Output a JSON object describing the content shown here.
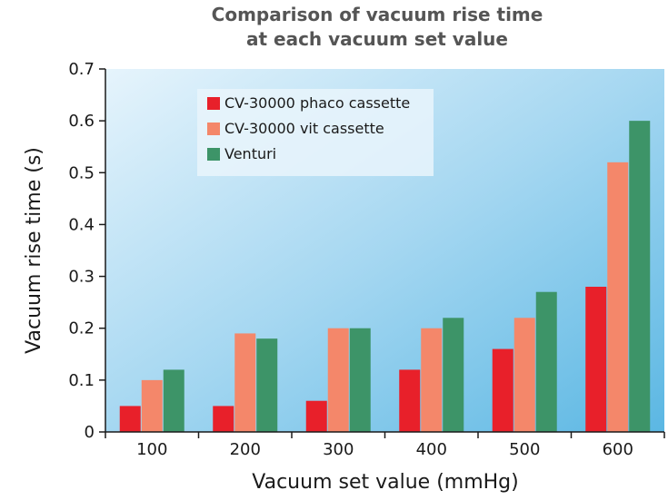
{
  "chart_data": {
    "type": "bar",
    "title": [
      "Comparison of vacuum rise time",
      "at each vacuum set value"
    ],
    "xlabel": "Vacuum set value (mmHg)",
    "ylabel": "Vacuum rise time (s)",
    "ylim": [
      0,
      0.7
    ],
    "yticks": [
      "0",
      "0.1",
      "0.2",
      "0.3",
      "0.4",
      "0.5",
      "0.6",
      "0.7"
    ],
    "categories": [
      "100",
      "200",
      "300",
      "400",
      "500",
      "600"
    ],
    "legend_position": "top-left",
    "grid": false,
    "series": [
      {
        "name": "CV-30000 phaco cassette",
        "color": "#e8202a",
        "values": [
          0.05,
          0.05,
          0.06,
          0.12,
          0.16,
          0.28
        ]
      },
      {
        "name": "CV-30000 vit cassette",
        "color": "#f4876a",
        "values": [
          0.1,
          0.19,
          0.2,
          0.2,
          0.22,
          0.52
        ]
      },
      {
        "name": "Venturi",
        "color": "#3d9468",
        "values": [
          0.12,
          0.18,
          0.2,
          0.22,
          0.27,
          0.6
        ]
      }
    ]
  }
}
